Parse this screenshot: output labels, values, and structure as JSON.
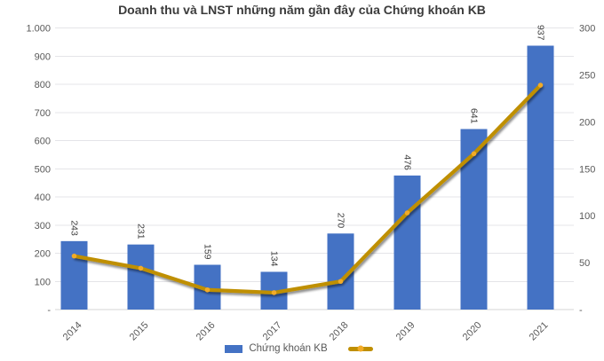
{
  "title": "Doanh thu và LNST những năm gần đây của Chứng khoán KB",
  "legend": {
    "bar_label": "Chứng khoán KB",
    "line_label": ""
  },
  "colors": {
    "bar": "#4472C4",
    "line": "#BF8F00",
    "line_marker": "#F2AB27",
    "title_text": "#3B3B3B",
    "axis_text": "#595959",
    "value_label_text": "#404040",
    "gridline": "#E4E4E8",
    "axis_line": "#D6D6D6"
  },
  "chart_data": {
    "type": "bar",
    "subtype": "bar+line combo, dual axis",
    "title": "Doanh thu và LNST những năm gần đây của Chứng khoán KB",
    "categories": [
      "2014",
      "2015",
      "2016",
      "2017",
      "2018",
      "2019",
      "2020",
      "2021"
    ],
    "series": [
      {
        "name": "Chứng khoán KB",
        "type": "bar",
        "axis": "left",
        "values": [
          243,
          231,
          159,
          134,
          270,
          476,
          641,
          937
        ]
      },
      {
        "name": "LNST",
        "type": "line",
        "axis": "right",
        "values": [
          57,
          44,
          21,
          18,
          30,
          103,
          166,
          239
        ]
      }
    ],
    "bar_value_labels": [
      "243",
      "231",
      "159",
      "134",
      "270",
      "476",
      "641",
      "937"
    ],
    "left_axis": {
      "min": 0,
      "max": 1000,
      "step": 100,
      "tick_labels": [
        "1.000",
        "900",
        "800",
        "700",
        "600",
        "500",
        "400",
        "300",
        "200",
        "100",
        "-"
      ]
    },
    "right_axis": {
      "min": 0,
      "max": 300,
      "step": 50,
      "tick_labels": [
        "300",
        "250",
        "200",
        "150",
        "100",
        "50",
        "-"
      ]
    },
    "grid": true,
    "legend_position": "bottom"
  }
}
